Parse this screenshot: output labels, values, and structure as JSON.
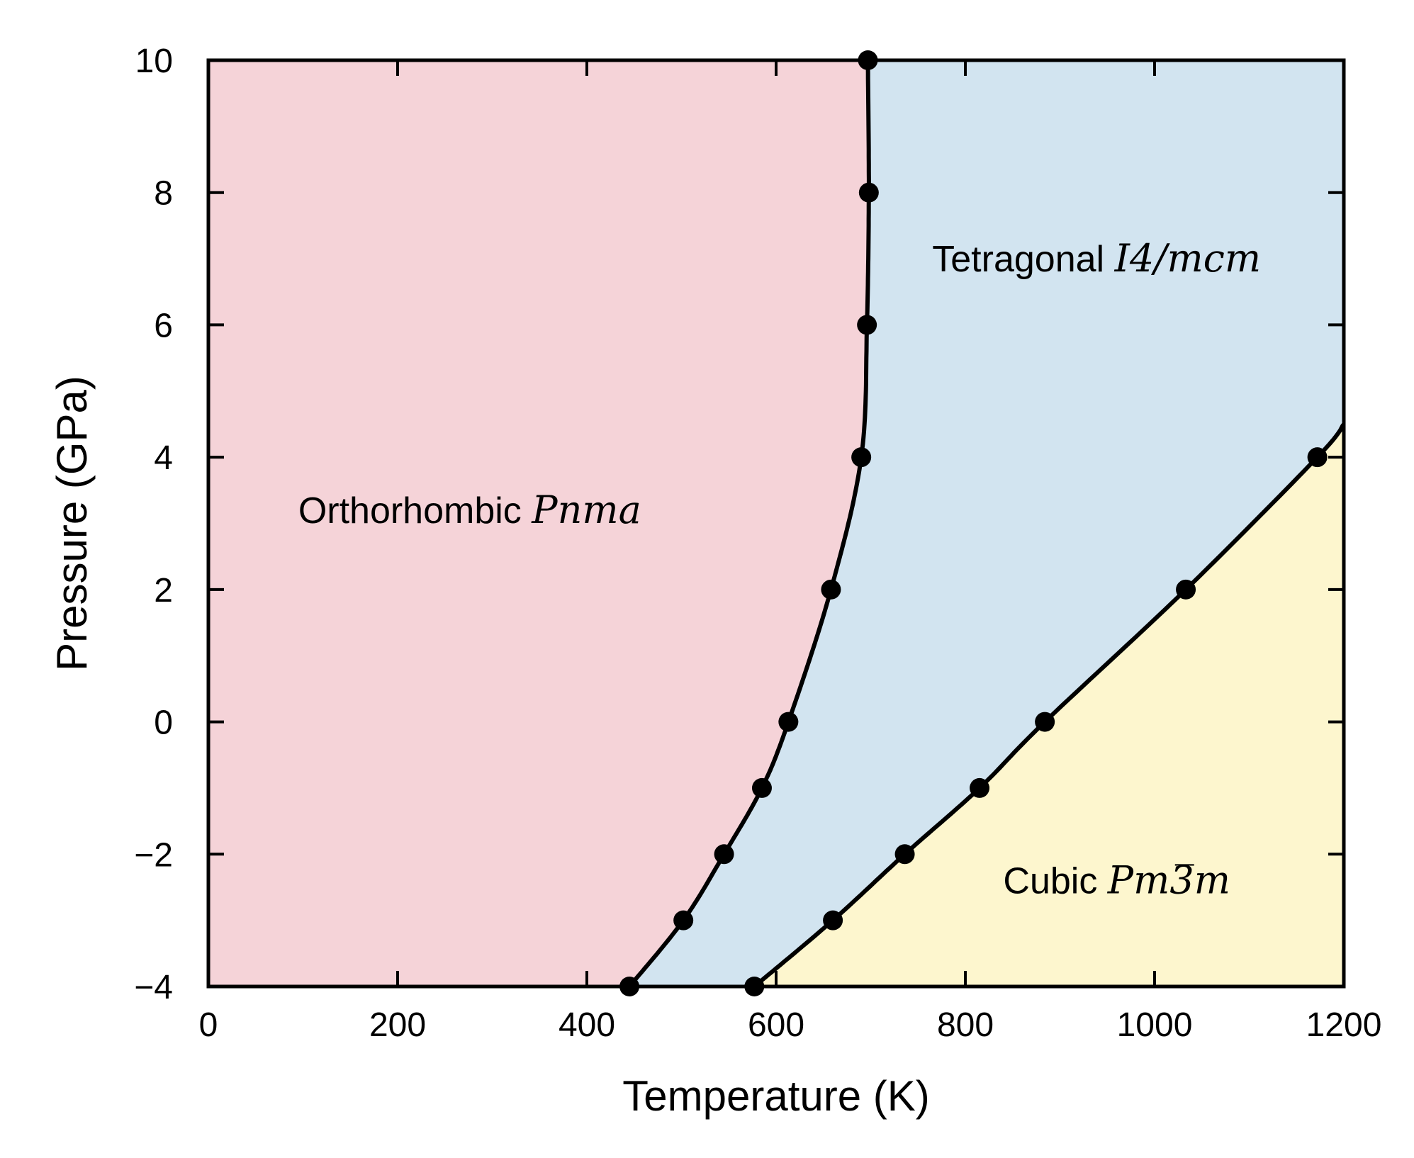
{
  "chart_data": {
    "type": "line",
    "title": "",
    "xlabel": "Temperature (K)",
    "ylabel": "Pressure (GPa)",
    "xlim": [
      0,
      1200
    ],
    "ylim": [
      -4,
      10
    ],
    "x_ticks": [
      0,
      200,
      400,
      600,
      800,
      1000,
      1200
    ],
    "y_ticks": [
      -4,
      -2,
      0,
      2,
      4,
      6,
      8,
      10
    ],
    "x_tick_labels": [
      "0",
      "200",
      "400",
      "600",
      "800",
      "1000",
      "1200"
    ],
    "y_tick_labels": [
      "−4",
      "−2",
      "0",
      "2",
      "4",
      "6",
      "8",
      "10"
    ],
    "grid": false,
    "colors": {
      "orthorhombic": "#f5d3d8",
      "tetragonal": "#d2e4f0",
      "cubic": "#fdf6ce",
      "line": "#000000"
    },
    "regions": [
      {
        "key": "orthorhombic",
        "name": "Orthorhombic",
        "group": "Pnma",
        "label_at": [
          95,
          3.2
        ]
      },
      {
        "key": "tetragonal",
        "name": "Tetragonal",
        "group": "I4/mcm",
        "label_at": [
          765,
          7.0
        ]
      },
      {
        "key": "cubic",
        "name": "Cubic",
        "group": "Pm3̅m",
        "label_at": [
          840,
          -2.4
        ]
      }
    ],
    "series": [
      {
        "key": "ortho_tetra",
        "points": [
          {
            "x": 445,
            "y": -4
          },
          {
            "x": 502,
            "y": -3
          },
          {
            "x": 545,
            "y": -2
          },
          {
            "x": 585,
            "y": -1
          },
          {
            "x": 613,
            "y": 0
          },
          {
            "x": 658,
            "y": 2
          },
          {
            "x": 690,
            "y": 4
          },
          {
            "x": 696,
            "y": 6
          },
          {
            "x": 698,
            "y": 8
          },
          {
            "x": 697,
            "y": 10
          }
        ]
      },
      {
        "key": "tetra_cubic",
        "points": [
          {
            "x": 577,
            "y": -4
          },
          {
            "x": 660,
            "y": -3
          },
          {
            "x": 736,
            "y": -2
          },
          {
            "x": 815,
            "y": -1
          },
          {
            "x": 884,
            "y": 0
          },
          {
            "x": 1033,
            "y": 2
          },
          {
            "x": 1172,
            "y": 4
          }
        ],
        "extends_to": {
          "x": 1200,
          "y": 4.5
        }
      }
    ]
  }
}
